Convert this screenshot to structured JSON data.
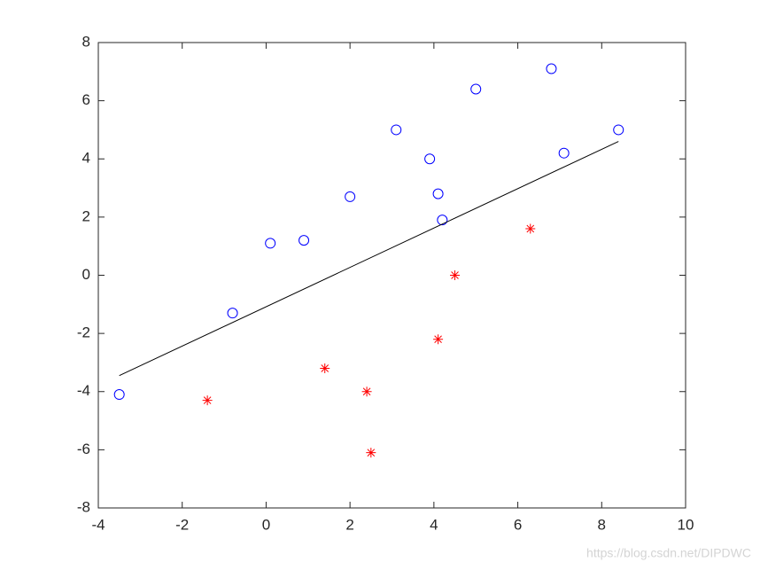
{
  "chart_data": {
    "type": "scatter",
    "xlim": [
      -4,
      10
    ],
    "xticks": [
      -4,
      -2,
      0,
      2,
      4,
      6,
      8,
      10
    ],
    "ylim": [
      -8,
      8
    ],
    "yticks": [
      -8,
      -6,
      -4,
      -2,
      0,
      2,
      4,
      6,
      8
    ],
    "box": true,
    "series": [
      {
        "color": "#0000ff",
        "marker": "circle",
        "x": [
          -3.5,
          -0.8,
          0.1,
          0.9,
          2.0,
          3.1,
          3.9,
          4.1,
          4.2,
          5.0,
          6.8,
          7.1,
          8.4
        ],
        "values": [
          -4.1,
          -1.3,
          1.1,
          1.2,
          2.7,
          5.0,
          4.0,
          2.8,
          1.9,
          6.4,
          7.1,
          4.2,
          5.0
        ]
      },
      {
        "color": "#ff0000",
        "marker": "star",
        "x": [
          -1.4,
          1.4,
          2.4,
          2.5,
          4.1,
          4.5,
          6.3
        ],
        "values": [
          -4.3,
          -3.2,
          -4.0,
          -6.1,
          -2.2,
          0.0,
          1.6
        ]
      },
      {
        "color": "#000000",
        "marker": "line",
        "x": [
          -3.5,
          8.4
        ],
        "values": [
          -3.45,
          4.6
        ]
      }
    ],
    "annotation": "https://blog.csdn.net/DIPDWC"
  }
}
